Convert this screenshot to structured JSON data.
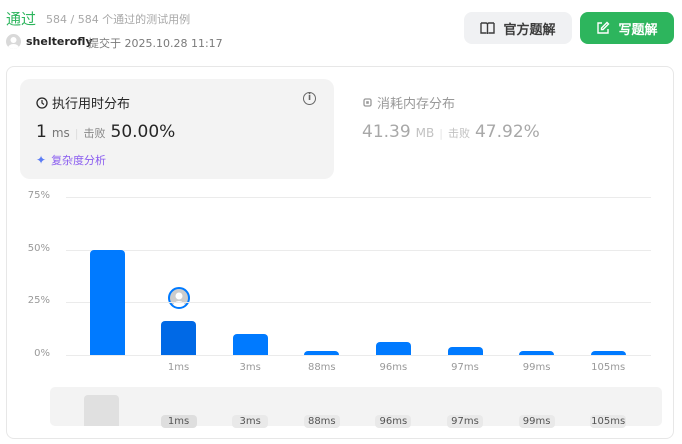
{
  "header": {
    "status": "通过",
    "cases": "584 / 584 个通过的测试用例",
    "user": "shelterofly",
    "submitted": "提交于 2025.10.28 11:17",
    "btn_official": "官方题解",
    "btn_write": "写题解"
  },
  "runtime": {
    "title": "执行用时分布",
    "value": "1",
    "unit": "ms",
    "beat_label": "击败",
    "beat": "50.00%",
    "complexity": "复杂度分析"
  },
  "memory": {
    "title": "消耗内存分布",
    "value": "41.39",
    "unit": "MB",
    "beat_label": "击败",
    "beat": "47.92%"
  },
  "colors": {
    "accent": "#2db55d",
    "bar": "#007aff",
    "bar_selected": "#0069e6"
  },
  "chart_data": {
    "type": "bar",
    "categories": [
      "",
      "1ms",
      "3ms",
      "88ms",
      "96ms",
      "97ms",
      "99ms",
      "105ms"
    ],
    "values": [
      50,
      16,
      10,
      2,
      6,
      4,
      2,
      2
    ],
    "selected": "1ms",
    "yticks": [
      "0%",
      "25%",
      "50%",
      "75%"
    ],
    "ylim": [
      0,
      75
    ],
    "grid": true
  }
}
